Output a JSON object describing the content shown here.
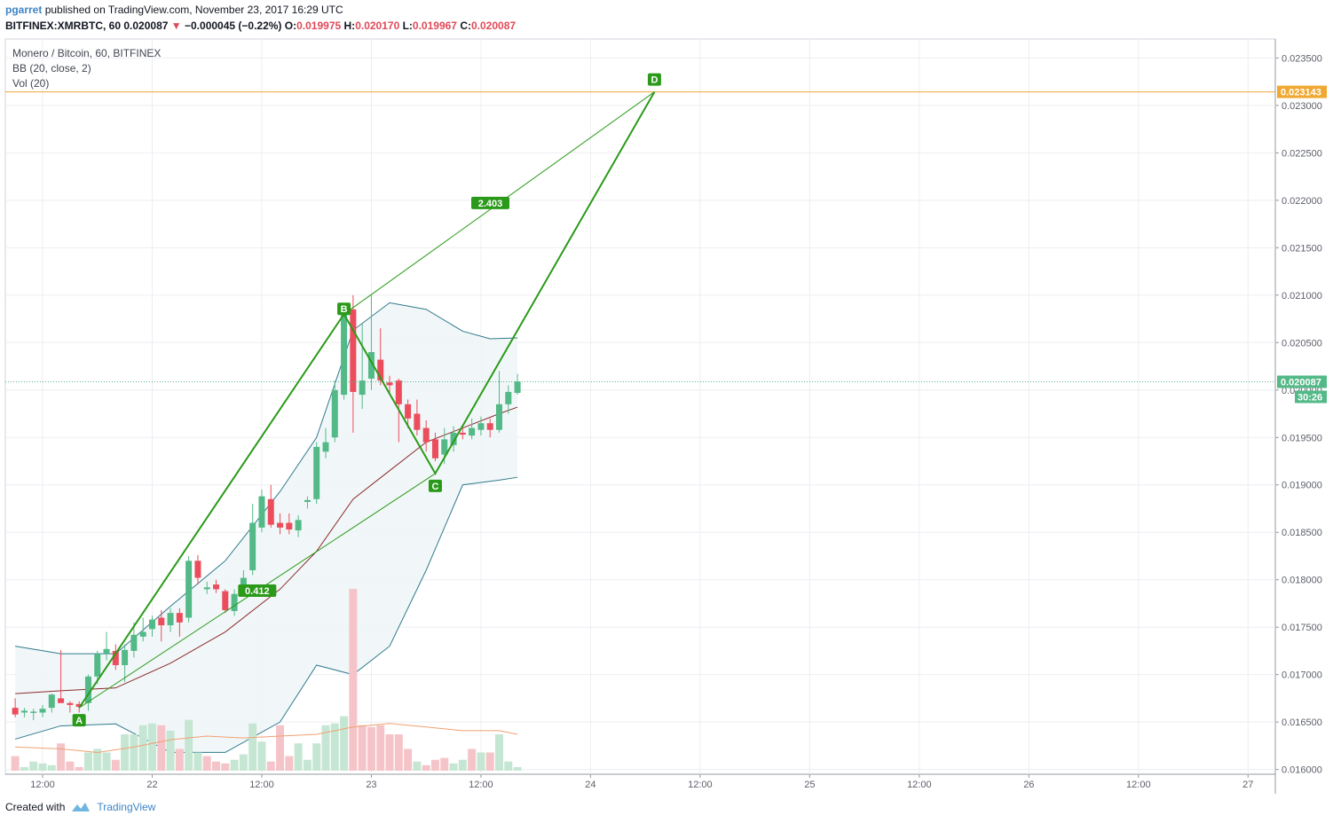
{
  "header": {
    "author": "pgarret",
    "published": "published on TradingView.com, November 23, 2017 16:29 UTC",
    "symbol_line": "BITFINEX:XMRBTC, 60",
    "last": "0.020087",
    "change_arrow": "▼",
    "change": "−0.000045 (−0.22%)",
    "o_label": "O:",
    "o": "0.019975",
    "h_label": "H:",
    "h": "0.020170",
    "l_label": "L:",
    "l": "0.019967",
    "c_label": "C:",
    "c": "0.020087"
  },
  "legend": {
    "title": "Monero / Bitcoin, 60, BITFINEX",
    "bb": "BB (20, close, 2)",
    "vol": "Vol (20)"
  },
  "footer": {
    "created": "Created with",
    "brand": "TradingView"
  },
  "colors": {
    "up": "#53b987",
    "down": "#eb4d5c",
    "pattern": "#2b9a1a",
    "target_line": "#f0a830",
    "bb_basis": "#8c2b2b",
    "bb_band": "#2f7a8c",
    "bb_fill": "#eef6f8",
    "vol_ma": "#f0a070",
    "vol_up": "#c6e6d4",
    "vol_down": "#f5c4c9"
  },
  "chart_data": {
    "type": "candlestick",
    "timeframe": "60",
    "ylim": [
      0.01595,
      0.0237
    ],
    "y_ticks": [
      "0.023500",
      "0.023000",
      "0.022500",
      "0.022000",
      "0.021500",
      "0.021000",
      "0.020500",
      "0.020000",
      "0.019500",
      "0.019000",
      "0.018500",
      "0.018000",
      "0.017500",
      "0.017000",
      "0.016500",
      "0.016000"
    ],
    "x_ticks": [
      {
        "label": "12:00",
        "t": 0
      },
      {
        "label": "22",
        "t": 12
      },
      {
        "label": "12:00",
        "t": 24
      },
      {
        "label": "23",
        "t": 36
      },
      {
        "label": "12:00",
        "t": 48
      },
      {
        "label": "24",
        "t": 60
      },
      {
        "label": "12:00",
        "t": 72
      },
      {
        "label": "25",
        "t": 84
      },
      {
        "label": "12:00",
        "t": 96
      },
      {
        "label": "26",
        "t": 108
      },
      {
        "label": "12:00",
        "t": 120
      },
      {
        "label": "27",
        "t": 132
      }
    ],
    "candles": [
      {
        "t": -3,
        "o": 0.01665,
        "h": 0.01675,
        "l": 0.01655,
        "c": 0.01658
      },
      {
        "t": -2,
        "o": 0.0166,
        "h": 0.01665,
        "l": 0.01655,
        "c": 0.01662
      },
      {
        "t": -1,
        "o": 0.0166,
        "h": 0.01664,
        "l": 0.01652,
        "c": 0.01661
      },
      {
        "t": 0,
        "o": 0.0166,
        "h": 0.01668,
        "l": 0.01655,
        "c": 0.01664
      },
      {
        "t": 1,
        "o": 0.01665,
        "h": 0.0168,
        "l": 0.0166,
        "c": 0.01679
      },
      {
        "t": 2,
        "o": 0.01675,
        "h": 0.01726,
        "l": 0.0167,
        "c": 0.0167
      },
      {
        "t": 3,
        "o": 0.0167,
        "h": 0.01672,
        "l": 0.0166,
        "c": 0.01668
      },
      {
        "t": 4,
        "o": 0.01669,
        "h": 0.01672,
        "l": 0.0166,
        "c": 0.01666
      },
      {
        "t": 5,
        "o": 0.0167,
        "h": 0.017,
        "l": 0.01662,
        "c": 0.01698
      },
      {
        "t": 6,
        "o": 0.01698,
        "h": 0.01725,
        "l": 0.0169,
        "c": 0.01722
      },
      {
        "t": 7,
        "o": 0.01722,
        "h": 0.01745,
        "l": 0.01715,
        "c": 0.01727
      },
      {
        "t": 8,
        "o": 0.01725,
        "h": 0.01732,
        "l": 0.01705,
        "c": 0.0171
      },
      {
        "t": 9,
        "o": 0.0171,
        "h": 0.01732,
        "l": 0.01692,
        "c": 0.01726
      },
      {
        "t": 10,
        "o": 0.01725,
        "h": 0.01755,
        "l": 0.01718,
        "c": 0.01742
      },
      {
        "t": 11,
        "o": 0.0174,
        "h": 0.0176,
        "l": 0.01735,
        "c": 0.01745
      },
      {
        "t": 12,
        "o": 0.01748,
        "h": 0.01762,
        "l": 0.0174,
        "c": 0.01758
      },
      {
        "t": 13,
        "o": 0.0176,
        "h": 0.01768,
        "l": 0.01735,
        "c": 0.01752
      },
      {
        "t": 14,
        "o": 0.01752,
        "h": 0.0177,
        "l": 0.01745,
        "c": 0.01765
      },
      {
        "t": 15,
        "o": 0.01765,
        "h": 0.0177,
        "l": 0.0174,
        "c": 0.01755
      },
      {
        "t": 16,
        "o": 0.0176,
        "h": 0.01825,
        "l": 0.01755,
        "c": 0.0182
      },
      {
        "t": 17,
        "o": 0.0182,
        "h": 0.01826,
        "l": 0.01795,
        "c": 0.01802
      },
      {
        "t": 18,
        "o": 0.0179,
        "h": 0.01798,
        "l": 0.01785,
        "c": 0.01792
      },
      {
        "t": 19,
        "o": 0.01795,
        "h": 0.018,
        "l": 0.01786,
        "c": 0.0179
      },
      {
        "t": 20,
        "o": 0.01788,
        "h": 0.0179,
        "l": 0.01765,
        "c": 0.01768
      },
      {
        "t": 21,
        "o": 0.01767,
        "h": 0.0179,
        "l": 0.01762,
        "c": 0.01785
      },
      {
        "t": 22,
        "o": 0.01784,
        "h": 0.0181,
        "l": 0.01782,
        "c": 0.01802
      },
      {
        "t": 23,
        "o": 0.0181,
        "h": 0.0188,
        "l": 0.01805,
        "c": 0.0186
      },
      {
        "t": 24,
        "o": 0.01855,
        "h": 0.01895,
        "l": 0.0185,
        "c": 0.01888
      },
      {
        "t": 25,
        "o": 0.01885,
        "h": 0.019,
        "l": 0.01855,
        "c": 0.01858
      },
      {
        "t": 26,
        "o": 0.0186,
        "h": 0.0187,
        "l": 0.01848,
        "c": 0.01855
      },
      {
        "t": 27,
        "o": 0.0186,
        "h": 0.0187,
        "l": 0.01848,
        "c": 0.01853
      },
      {
        "t": 28,
        "o": 0.01852,
        "h": 0.01868,
        "l": 0.01845,
        "c": 0.01863
      },
      {
        "t": 29,
        "o": 0.01882,
        "h": 0.01888,
        "l": 0.01875,
        "c": 0.01884
      },
      {
        "t": 30,
        "o": 0.01885,
        "h": 0.01945,
        "l": 0.0188,
        "c": 0.0194
      },
      {
        "t": 31,
        "o": 0.01935,
        "h": 0.0196,
        "l": 0.01928,
        "c": 0.01945
      },
      {
        "t": 32,
        "o": 0.0195,
        "h": 0.0201,
        "l": 0.01945,
        "c": 0.02
      },
      {
        "t": 33,
        "o": 0.01995,
        "h": 0.0209,
        "l": 0.0199,
        "c": 0.0208
      },
      {
        "t": 34,
        "o": 0.02085,
        "h": 0.021,
        "l": 0.01955,
        "c": 0.01998
      },
      {
        "t": 35,
        "o": 0.01995,
        "h": 0.0207,
        "l": 0.0198,
        "c": 0.0201
      },
      {
        "t": 36,
        "o": 0.02012,
        "h": 0.021,
        "l": 0.02,
        "c": 0.0204
      },
      {
        "t": 37,
        "o": 0.02032,
        "h": 0.02065,
        "l": 0.02005,
        "c": 0.0201
      },
      {
        "t": 38,
        "o": 0.02008,
        "h": 0.02015,
        "l": 0.01995,
        "c": 0.02005
      },
      {
        "t": 39,
        "o": 0.0201,
        "h": 0.02012,
        "l": 0.01945,
        "c": 0.01985
      },
      {
        "t": 40,
        "o": 0.01985,
        "h": 0.0199,
        "l": 0.0196,
        "c": 0.0197
      },
      {
        "t": 41,
        "o": 0.01975,
        "h": 0.0199,
        "l": 0.01952,
        "c": 0.01958
      },
      {
        "t": 42,
        "o": 0.0196,
        "h": 0.01968,
        "l": 0.01935,
        "c": 0.01945
      },
      {
        "t": 43,
        "o": 0.01948,
        "h": 0.01955,
        "l": 0.01925,
        "c": 0.01928
      },
      {
        "t": 44,
        "o": 0.01932,
        "h": 0.0196,
        "l": 0.01922,
        "c": 0.01948
      },
      {
        "t": 45,
        "o": 0.01942,
        "h": 0.01962,
        "l": 0.01935,
        "c": 0.01955
      },
      {
        "t": 46,
        "o": 0.01955,
        "h": 0.0196,
        "l": 0.01948,
        "c": 0.01953
      },
      {
        "t": 47,
        "o": 0.01952,
        "h": 0.0197,
        "l": 0.01948,
        "c": 0.0196
      },
      {
        "t": 48,
        "o": 0.01958,
        "h": 0.01972,
        "l": 0.01952,
        "c": 0.01965
      },
      {
        "t": 49,
        "o": 0.01965,
        "h": 0.0197,
        "l": 0.0195,
        "c": 0.01958
      },
      {
        "t": 50,
        "o": 0.01958,
        "h": 0.0202,
        "l": 0.01955,
        "c": 0.01985
      },
      {
        "t": 51,
        "o": 0.01985,
        "h": 0.02005,
        "l": 0.01975,
        "c": 0.01998
      },
      {
        "t": 52,
        "o": 0.01997,
        "h": 0.02017,
        "l": 0.01995,
        "c": 0.02009
      }
    ],
    "volume": [
      {
        "t": -3,
        "v": 0.08,
        "d": 1
      },
      {
        "t": -2,
        "v": 0.02,
        "d": 0
      },
      {
        "t": -1,
        "v": 0.05,
        "d": 0
      },
      {
        "t": 0,
        "v": 0.04,
        "d": 0
      },
      {
        "t": 1,
        "v": 0.03,
        "d": 0
      },
      {
        "t": 2,
        "v": 0.15,
        "d": 1
      },
      {
        "t": 3,
        "v": 0.05,
        "d": 1
      },
      {
        "t": 4,
        "v": 0.02,
        "d": 1
      },
      {
        "t": 5,
        "v": 0.1,
        "d": 0
      },
      {
        "t": 6,
        "v": 0.12,
        "d": 0
      },
      {
        "t": 7,
        "v": 0.1,
        "d": 0
      },
      {
        "t": 8,
        "v": 0.06,
        "d": 1
      },
      {
        "t": 9,
        "v": 0.2,
        "d": 0
      },
      {
        "t": 10,
        "v": 0.2,
        "d": 0
      },
      {
        "t": 11,
        "v": 0.25,
        "d": 0
      },
      {
        "t": 12,
        "v": 0.26,
        "d": 0
      },
      {
        "t": 13,
        "v": 0.25,
        "d": 1
      },
      {
        "t": 14,
        "v": 0.22,
        "d": 0
      },
      {
        "t": 15,
        "v": 0.12,
        "d": 1
      },
      {
        "t": 16,
        "v": 0.28,
        "d": 0
      },
      {
        "t": 17,
        "v": 0.1,
        "d": 0
      },
      {
        "t": 18,
        "v": 0.08,
        "d": 1
      },
      {
        "t": 19,
        "v": 0.05,
        "d": 1
      },
      {
        "t": 20,
        "v": 0.04,
        "d": 1
      },
      {
        "t": 21,
        "v": 0.06,
        "d": 0
      },
      {
        "t": 22,
        "v": 0.09,
        "d": 0
      },
      {
        "t": 23,
        "v": 0.26,
        "d": 0
      },
      {
        "t": 24,
        "v": 0.16,
        "d": 0
      },
      {
        "t": 25,
        "v": 0.05,
        "d": 1
      },
      {
        "t": 26,
        "v": 0.25,
        "d": 1
      },
      {
        "t": 27,
        "v": 0.08,
        "d": 1
      },
      {
        "t": 28,
        "v": 0.15,
        "d": 0
      },
      {
        "t": 29,
        "v": 0.06,
        "d": 0
      },
      {
        "t": 30,
        "v": 0.15,
        "d": 0
      },
      {
        "t": 31,
        "v": 0.25,
        "d": 0
      },
      {
        "t": 32,
        "v": 0.26,
        "d": 0
      },
      {
        "t": 33,
        "v": 0.3,
        "d": 0
      },
      {
        "t": 34,
        "v": 1.0,
        "d": 1
      },
      {
        "t": 35,
        "v": 0.25,
        "d": 1
      },
      {
        "t": 36,
        "v": 0.24,
        "d": 1
      },
      {
        "t": 37,
        "v": 0.25,
        "d": 1
      },
      {
        "t": 38,
        "v": 0.2,
        "d": 1
      },
      {
        "t": 39,
        "v": 0.2,
        "d": 1
      },
      {
        "t": 40,
        "v": 0.12,
        "d": 1
      },
      {
        "t": 41,
        "v": 0.05,
        "d": 0
      },
      {
        "t": 42,
        "v": 0.03,
        "d": 1
      },
      {
        "t": 43,
        "v": 0.06,
        "d": 1
      },
      {
        "t": 44,
        "v": 0.07,
        "d": 1
      },
      {
        "t": 45,
        "v": 0.04,
        "d": 0
      },
      {
        "t": 46,
        "v": 0.06,
        "d": 0
      },
      {
        "t": 47,
        "v": 0.12,
        "d": 1
      },
      {
        "t": 48,
        "v": 0.1,
        "d": 0
      },
      {
        "t": 49,
        "v": 0.1,
        "d": 1
      },
      {
        "t": 50,
        "v": 0.2,
        "d": 0
      },
      {
        "t": 51,
        "v": 0.05,
        "d": 0
      },
      {
        "t": 52,
        "v": 0.02,
        "d": 0
      }
    ],
    "bb_basis": [
      [
        -3,
        0.0168
      ],
      [
        2,
        0.01683
      ],
      [
        8,
        0.01686
      ],
      [
        14,
        0.01712
      ],
      [
        20,
        0.01745
      ],
      [
        26,
        0.0179
      ],
      [
        30,
        0.0183
      ],
      [
        34,
        0.01885
      ],
      [
        38,
        0.01915
      ],
      [
        42,
        0.01945
      ],
      [
        46,
        0.0196
      ],
      [
        50,
        0.01975
      ],
      [
        52,
        0.01982
      ]
    ],
    "bb_upper": [
      [
        -3,
        0.0173
      ],
      [
        2,
        0.01722
      ],
      [
        8,
        0.01722
      ],
      [
        14,
        0.01772
      ],
      [
        20,
        0.0182
      ],
      [
        26,
        0.01893
      ],
      [
        30,
        0.0195
      ],
      [
        34,
        0.02063
      ],
      [
        38,
        0.02092
      ],
      [
        42,
        0.02085
      ],
      [
        46,
        0.02062
      ],
      [
        49,
        0.02054
      ],
      [
        52,
        0.02055
      ]
    ],
    "bb_lower": [
      [
        -3,
        0.01632
      ],
      [
        2,
        0.01646
      ],
      [
        8,
        0.01648
      ],
      [
        14,
        0.01618
      ],
      [
        20,
        0.01618
      ],
      [
        26,
        0.0165
      ],
      [
        30,
        0.0171
      ],
      [
        34,
        0.017
      ],
      [
        38,
        0.0173
      ],
      [
        42,
        0.0181
      ],
      [
        46,
        0.019
      ],
      [
        50,
        0.01905
      ],
      [
        52,
        0.01908
      ]
    ],
    "vol_ma": [
      [
        -3,
        0.13
      ],
      [
        2,
        0.12
      ],
      [
        6,
        0.1
      ],
      [
        10,
        0.13
      ],
      [
        14,
        0.17
      ],
      [
        18,
        0.19
      ],
      [
        22,
        0.18
      ],
      [
        26,
        0.19
      ],
      [
        30,
        0.2
      ],
      [
        34,
        0.24
      ],
      [
        38,
        0.26
      ],
      [
        42,
        0.24
      ],
      [
        46,
        0.22
      ],
      [
        50,
        0.22
      ],
      [
        52,
        0.2
      ]
    ],
    "pattern": {
      "A": {
        "t": 4,
        "price": 0.01665
      },
      "B": {
        "t": 33,
        "price": 0.0208
      },
      "C": {
        "t": 43,
        "price": 0.01912
      },
      "D": {
        "t": 67,
        "price": 0.023143
      },
      "ratios": [
        {
          "label": "0.412",
          "from": "A",
          "to": "C"
        },
        {
          "label": "2.403",
          "from": "B",
          "to": "D"
        }
      ]
    },
    "target_price": "0.023143",
    "last_price": "0.020087",
    "countdown": "30:26",
    "grid": true
  }
}
